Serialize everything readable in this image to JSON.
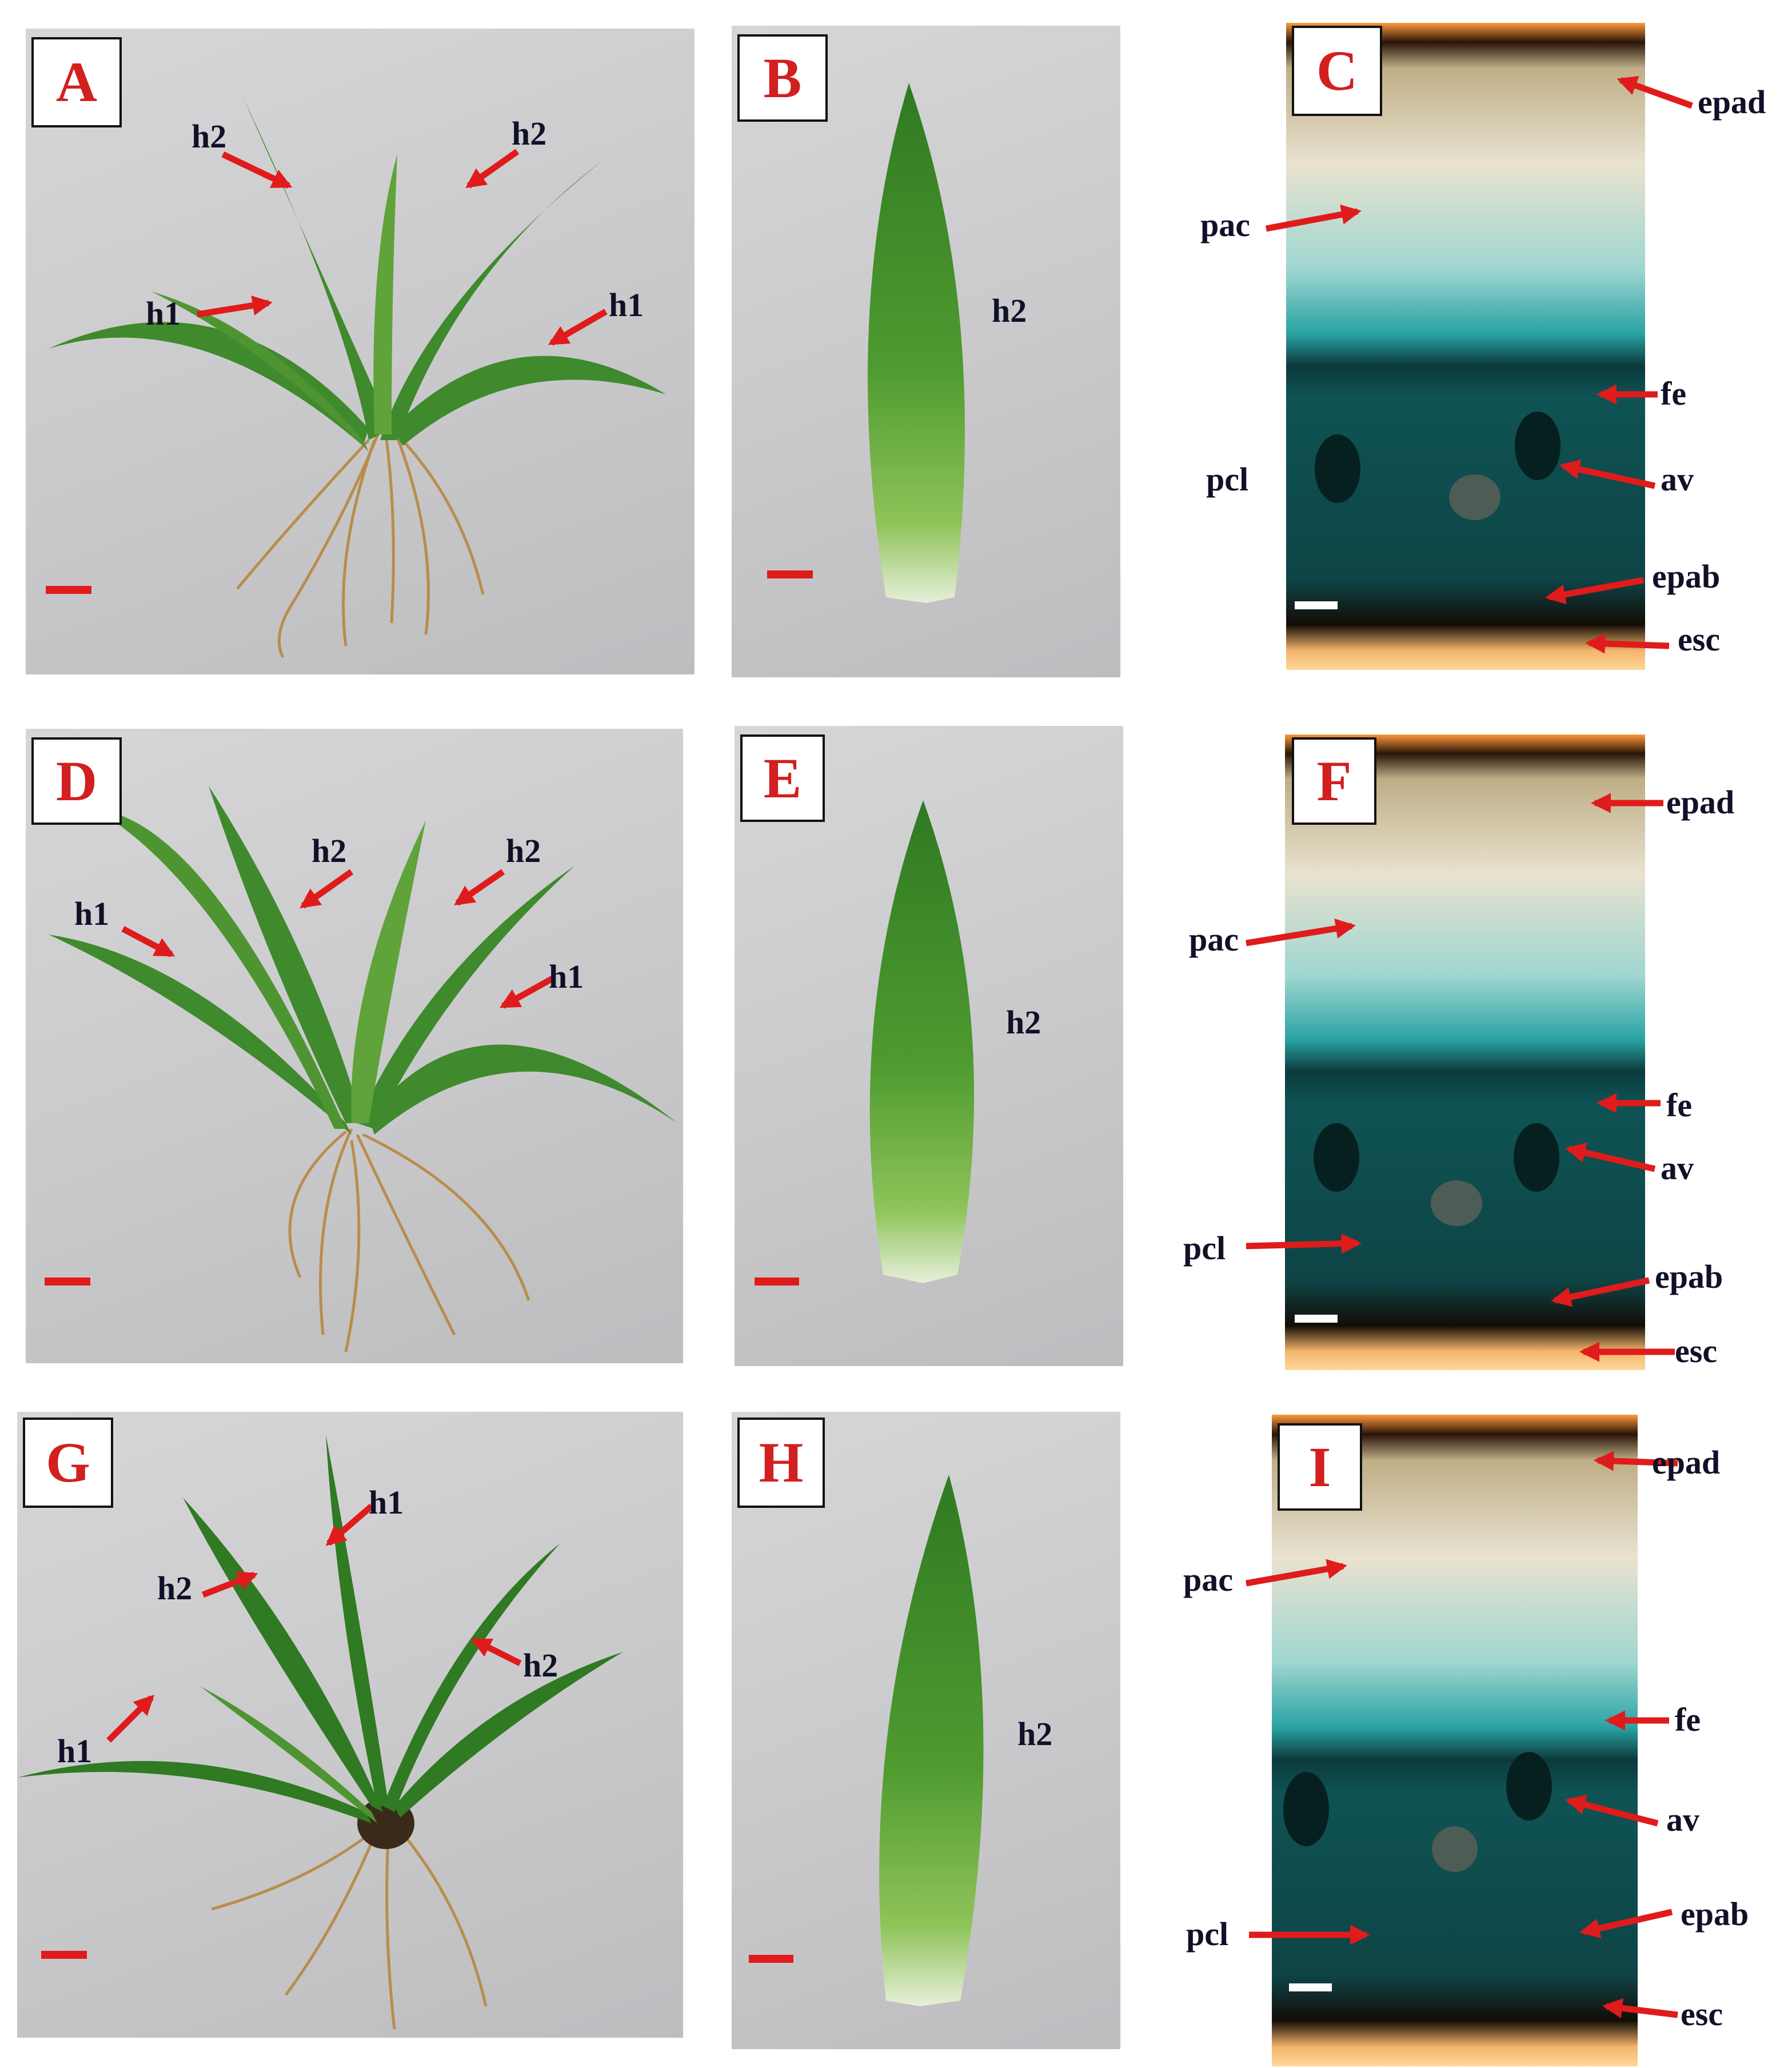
{
  "panels": {
    "A": {
      "letter": "A",
      "labels": {
        "h2_left": "h2",
        "h2_right": "h2",
        "h1_left": "h1",
        "h1_right": "h1"
      }
    },
    "B": {
      "letter": "B",
      "labels": {
        "h2": "h2"
      }
    },
    "C": {
      "letter": "C",
      "labels": {
        "epad": "epad",
        "pac": "pac",
        "fe": "fe",
        "av": "av",
        "pcl": "pcl",
        "epab": "epab",
        "esc": "esc"
      }
    },
    "D": {
      "letter": "D",
      "labels": {
        "h2_left": "h2",
        "h2_right": "h2",
        "h1_left": "h1",
        "h1_right": "h1"
      }
    },
    "E": {
      "letter": "E",
      "labels": {
        "h2": "h2"
      }
    },
    "F": {
      "letter": "F",
      "labels": {
        "epad": "epad",
        "pac": "pac",
        "fe": "fe",
        "av": "av",
        "pcl": "pcl",
        "epab": "epab",
        "esc": "esc"
      }
    },
    "G": {
      "letter": "G",
      "labels": {
        "h1_top": "h1",
        "h2_left": "h2",
        "h2_right": "h2",
        "h1_left": "h1"
      }
    },
    "H": {
      "letter": "H",
      "labels": {
        "h2": "h2"
      }
    },
    "I": {
      "letter": "I",
      "labels": {
        "epad": "epad",
        "pac": "pac",
        "fe": "fe",
        "av": "av",
        "pcl": "pcl",
        "epab": "epab",
        "esc": "esc"
      }
    }
  },
  "colors": {
    "letter": "#d21f1f",
    "arrow": "#e01b1b",
    "label": "#101028",
    "photo_background": "#c9c9cb",
    "leaf_green": "#3f8a2c",
    "root": "#b8873f",
    "stain_teal": "#0e4a4a",
    "cuticle_orange": "#f2a35a"
  }
}
